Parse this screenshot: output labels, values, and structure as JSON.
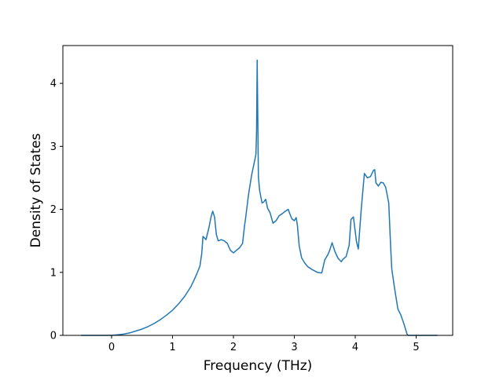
{
  "chart_data": {
    "type": "line",
    "title": "",
    "xlabel": "Frequency (THz)",
    "ylabel": "Density of States",
    "xlim": [
      -0.8,
      5.6
    ],
    "ylim": [
      0,
      4.6
    ],
    "grid": false,
    "legend": "none",
    "series_color": "#1f77b4",
    "xticks": [
      {
        "value": 0,
        "label": "0"
      },
      {
        "value": 1,
        "label": "1"
      },
      {
        "value": 2,
        "label": "2"
      },
      {
        "value": 3,
        "label": "3"
      },
      {
        "value": 4,
        "label": "4"
      },
      {
        "value": 5,
        "label": "5"
      }
    ],
    "yticks": [
      {
        "value": 0,
        "label": "0"
      },
      {
        "value": 1,
        "label": "1"
      },
      {
        "value": 2,
        "label": "2"
      },
      {
        "value": 3,
        "label": "3"
      },
      {
        "value": 4,
        "label": "4"
      }
    ],
    "series": [
      {
        "x": [
          -0.5,
          -0.25,
          0,
          0.1,
          0.2,
          0.3,
          0.4,
          0.5,
          0.6,
          0.7,
          0.8,
          0.9,
          1.0,
          1.1,
          1.2,
          1.3,
          1.35,
          1.4,
          1.45,
          1.48,
          1.5,
          1.55,
          1.6,
          1.63,
          1.66,
          1.69,
          1.72,
          1.75,
          1.8,
          1.85,
          1.9,
          1.95,
          2.0,
          2.05,
          2.1,
          2.15,
          2.18,
          2.2,
          2.25,
          2.3,
          2.35,
          2.37,
          2.38,
          2.39,
          2.4,
          2.41,
          2.43,
          2.47,
          2.5,
          2.53,
          2.56,
          2.6,
          2.65,
          2.7,
          2.75,
          2.8,
          2.85,
          2.9,
          2.93,
          2.96,
          3.0,
          3.03,
          3.05,
          3.08,
          3.12,
          3.17,
          3.22,
          3.3,
          3.38,
          3.45,
          3.5,
          3.55,
          3.58,
          3.62,
          3.67,
          3.72,
          3.77,
          3.8,
          3.85,
          3.88,
          3.9,
          3.93,
          3.97,
          4.02,
          4.05,
          4.1,
          4.15,
          4.2,
          4.25,
          4.3,
          4.32,
          4.34,
          4.38,
          4.42,
          4.46,
          4.5,
          4.55,
          4.58,
          4.6,
          4.65,
          4.7,
          4.75,
          4.8,
          4.85,
          4.87,
          4.9,
          5.0,
          5.2,
          5.35
        ],
        "y": [
          0,
          0,
          0,
          0.01,
          0.02,
          0.04,
          0.07,
          0.1,
          0.14,
          0.19,
          0.25,
          0.32,
          0.4,
          0.5,
          0.62,
          0.77,
          0.87,
          0.98,
          1.1,
          1.3,
          1.57,
          1.52,
          1.72,
          1.87,
          1.97,
          1.88,
          1.6,
          1.5,
          1.52,
          1.5,
          1.46,
          1.35,
          1.31,
          1.35,
          1.39,
          1.46,
          1.72,
          1.86,
          2.25,
          2.55,
          2.78,
          2.88,
          3.25,
          4.37,
          3.45,
          2.52,
          2.3,
          2.1,
          2.12,
          2.16,
          2.02,
          1.95,
          1.78,
          1.82,
          1.9,
          1.93,
          1.97,
          2.0,
          1.92,
          1.85,
          1.82,
          1.87,
          1.75,
          1.42,
          1.23,
          1.15,
          1.09,
          1.04,
          1.0,
          0.99,
          1.2,
          1.28,
          1.35,
          1.47,
          1.32,
          1.22,
          1.17,
          1.21,
          1.25,
          1.36,
          1.43,
          1.84,
          1.88,
          1.49,
          1.37,
          2.02,
          2.57,
          2.5,
          2.52,
          2.62,
          2.63,
          2.42,
          2.37,
          2.43,
          2.42,
          2.35,
          2.1,
          1.43,
          1.05,
          0.72,
          0.42,
          0.32,
          0.18,
          0.02,
          0,
          0,
          0,
          0,
          0
        ]
      }
    ]
  }
}
